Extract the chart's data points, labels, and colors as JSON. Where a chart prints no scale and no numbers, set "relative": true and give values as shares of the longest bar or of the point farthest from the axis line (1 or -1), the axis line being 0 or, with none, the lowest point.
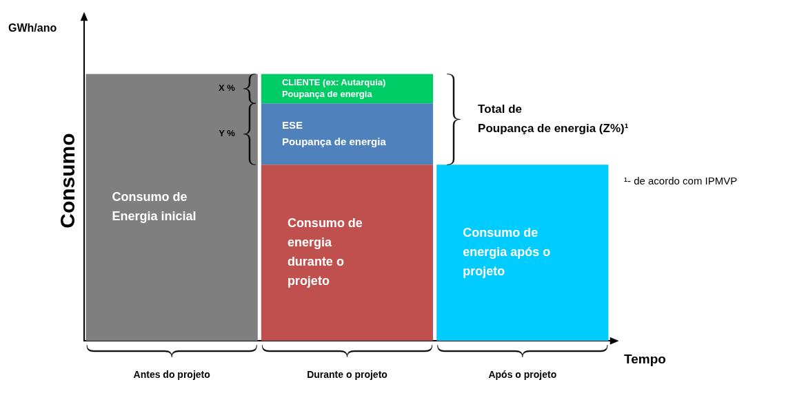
{
  "chart_data": {
    "type": "bar",
    "stacked": true,
    "relative": true,
    "ylabel": "Consumo",
    "xlabel": "Tempo",
    "categories": [
      "Antes do projeto",
      "Durante o projeto",
      "Após o projeto"
    ],
    "series": [
      {
        "name": "Consumo de\nEnergia inicial",
        "color": "#7f7f7f",
        "values": [
          1,
          null,
          null
        ]
      },
      {
        "name": "Consumo de\nenergia\ndurante o\nprojeto",
        "color": "#c0504d",
        "values": [
          null,
          0.66,
          null
        ]
      },
      {
        "name": "ESE\nPoupança de energia",
        "color": "#4f81bd",
        "values": [
          null,
          0.23,
          null
        ]
      },
      {
        "name": "CLIENTE (ex: Autarquia)\nPoupança de energia",
        "color": "#00cc66",
        "values": [
          null,
          0.11,
          null
        ]
      },
      {
        "name": "Consumo de\nenergia após o\nprojeto",
        "color": "#00ccff",
        "values": [
          null,
          null,
          0.66
        ]
      }
    ],
    "annotations": [
      "GWh/ano",
      "X %",
      "Y %",
      "Total de\nPoupança de energia (Z%)¹",
      "¹- de acordo com IPMVP"
    ]
  }
}
